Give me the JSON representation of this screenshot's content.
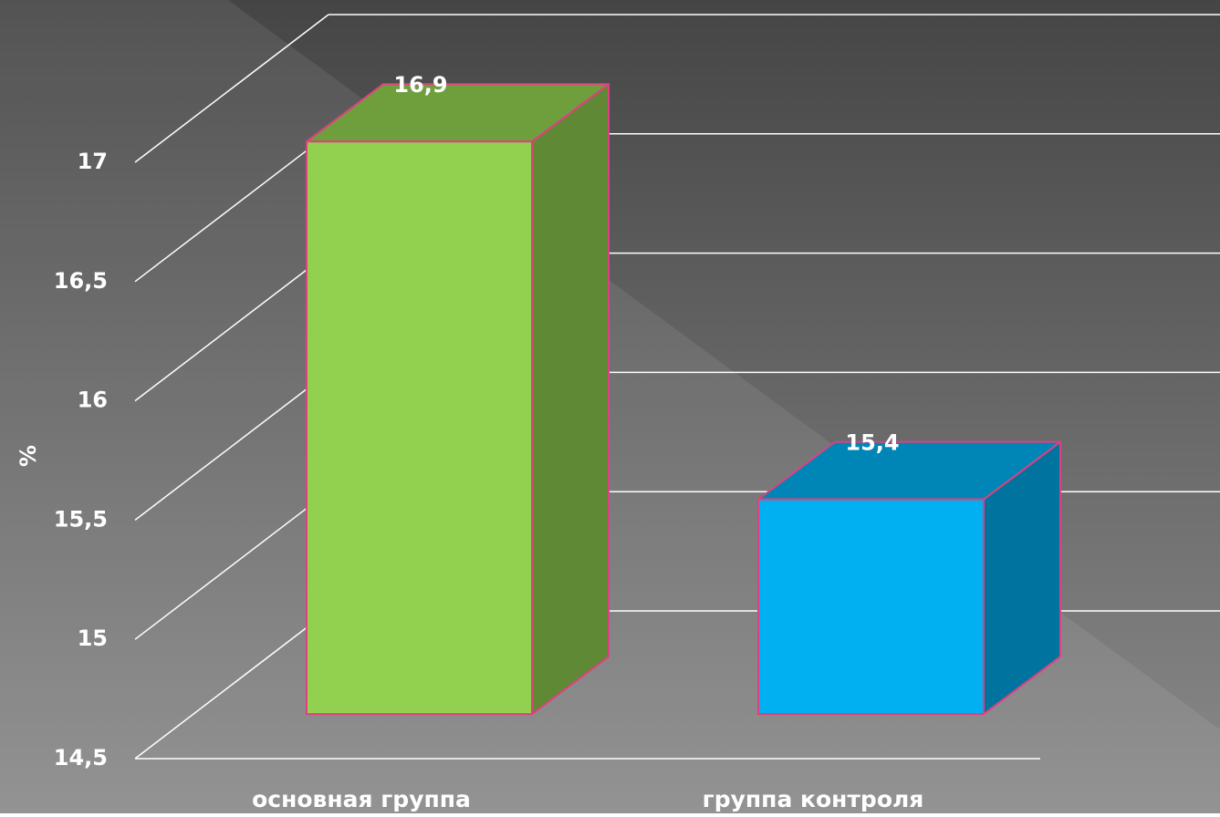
{
  "chart_data": {
    "type": "bar3d",
    "y_label": "%",
    "categories": [
      "основная группа",
      "группа контроля"
    ],
    "values": [
      16.9,
      15.4
    ],
    "value_labels": [
      "16,9",
      "15,4"
    ],
    "colors": [
      "#92d050",
      "#00b0f0"
    ],
    "ylim": [
      14.5,
      17
    ],
    "yticks": [
      {
        "value": 14.5,
        "label": "14,5"
      },
      15,
      {
        "value": 15.5,
        "label": "15,5"
      },
      16,
      {
        "value": 16.5,
        "label": "16,5"
      },
      17
    ],
    "grid": true
  }
}
